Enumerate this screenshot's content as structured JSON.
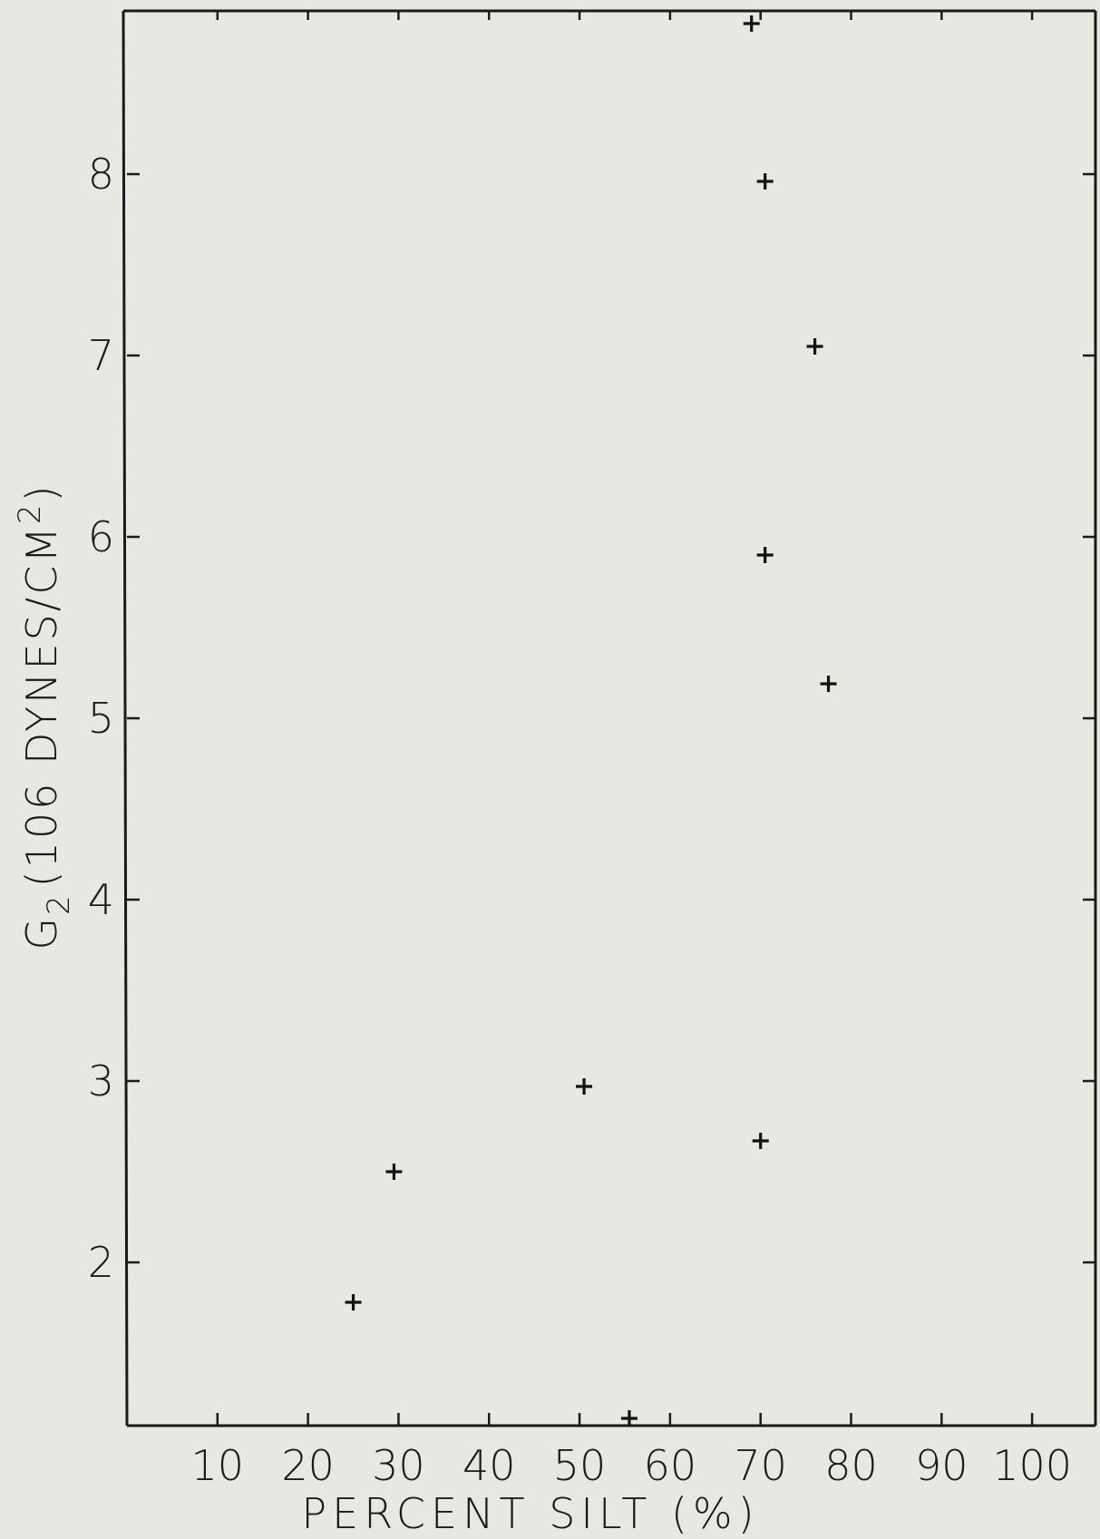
{
  "chart_data": {
    "type": "scatter",
    "title": "",
    "xlabel": "PERCENT SILT (%)",
    "ylabel_main": "G",
    "ylabel_sub": "2",
    "ylabel_rest": "(106 DYNES/CM",
    "ylabel_sup": "2",
    "ylabel_close": ")",
    "xlim": [
      0,
      107
    ],
    "ylim": [
      1.1,
      8.9
    ],
    "x_ticks": [
      10,
      20,
      30,
      40,
      50,
      60,
      70,
      80,
      90,
      100
    ],
    "x_tick_labels": [
      "10",
      "20",
      "30",
      "40",
      "50",
      "60",
      "70",
      "80",
      "90",
      "100"
    ],
    "y_ticks": [
      2,
      3,
      4,
      5,
      6,
      7,
      8
    ],
    "y_tick_labels": [
      "2",
      "3",
      "4",
      "5",
      "6",
      "7",
      "8"
    ],
    "marker": "+",
    "grid": false,
    "color": "#111111",
    "points": [
      {
        "x": 25,
        "y": 1.78
      },
      {
        "x": 29.5,
        "y": 2.5
      },
      {
        "x": 50.5,
        "y": 2.97
      },
      {
        "x": 55.5,
        "y": 1.14
      },
      {
        "x": 70,
        "y": 2.67
      },
      {
        "x": 70.5,
        "y": 5.9
      },
      {
        "x": 77.5,
        "y": 5.19
      },
      {
        "x": 76,
        "y": 7.05
      },
      {
        "x": 70.5,
        "y": 7.96
      },
      {
        "x": 69,
        "y": 8.83
      }
    ]
  }
}
